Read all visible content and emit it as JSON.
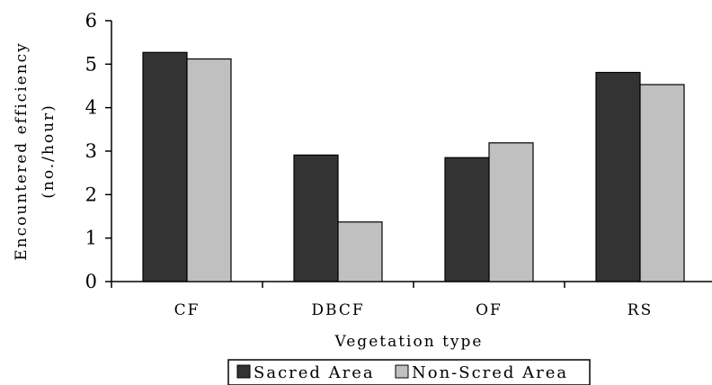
{
  "chart_data": {
    "type": "bar",
    "categories": [
      "CF",
      "DBCF",
      "OF",
      "RS"
    ],
    "series": [
      {
        "name": "Sacred Area",
        "values": [
          5.27,
          2.91,
          2.85,
          4.81
        ],
        "color": "#333333"
      },
      {
        "name": "Non-Scred Area",
        "values": [
          5.12,
          1.37,
          3.19,
          4.53
        ],
        "color": "#c0c0c0"
      }
    ],
    "xlabel": "Vegetation type",
    "ylabel": [
      "Encountered efficiency",
      "(no./hour)"
    ],
    "ylim": [
      0,
      6
    ],
    "yticks": [
      "0",
      "1",
      "2",
      "3",
      "4",
      "5",
      "6"
    ],
    "grid": false,
    "legend_position": "bottom-center"
  }
}
